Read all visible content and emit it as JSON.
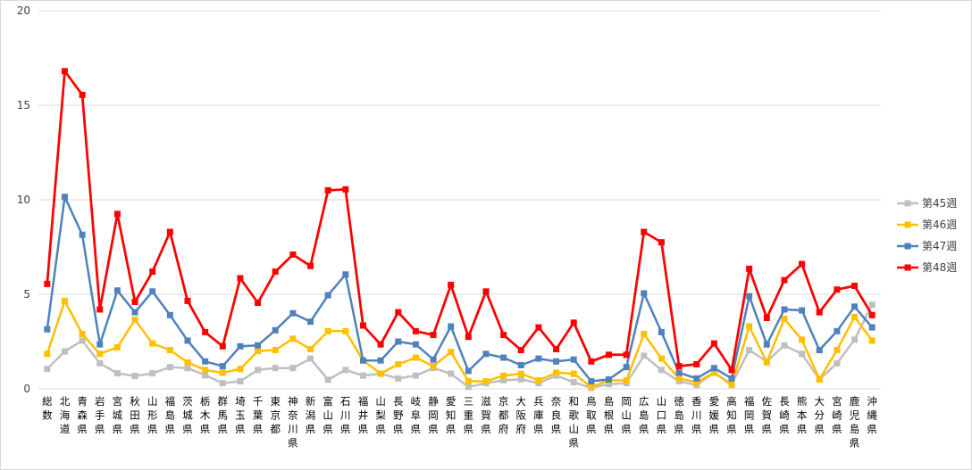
{
  "chart_data": {
    "type": "line",
    "title": "",
    "xlabel": "",
    "ylabel": "",
    "ylim": [
      0,
      20
    ],
    "yticks": [
      "0",
      "5",
      "10",
      "15",
      "20"
    ],
    "grid": "horizontal",
    "legend_position": "right",
    "categories": [
      "総数",
      "北海道",
      "青森県",
      "岩手県",
      "宮城県",
      "秋田県",
      "山形県",
      "福島県",
      "茨城県",
      "栃木県",
      "群馬県",
      "埼玉県",
      "千葉県",
      "東京都",
      "神奈川県",
      "新潟県",
      "富山県",
      "石川県",
      "福井県",
      "山梨県",
      "長野県",
      "岐阜県",
      "静岡県",
      "愛知県",
      "三重県",
      "滋賀県",
      "京都府",
      "大阪府",
      "兵庫県",
      "奈良県",
      "和歌山県",
      "鳥取県",
      "島根県",
      "岡山県",
      "広島県",
      "山口県",
      "徳島県",
      "香川県",
      "愛媛県",
      "高知県",
      "福岡県",
      "佐賀県",
      "長崎県",
      "熊本県",
      "大分県",
      "宮崎県",
      "鹿児島県",
      "沖縄県"
    ],
    "series": [
      {
        "name": "第45週",
        "color": "#bfbfbf",
        "values": [
          1.05,
          1.98,
          2.55,
          1.35,
          0.82,
          0.68,
          0.82,
          1.15,
          1.1,
          0.72,
          0.3,
          0.4,
          1.0,
          1.1,
          1.1,
          1.6,
          0.48,
          1.0,
          0.7,
          0.8,
          0.55,
          0.7,
          1.1,
          0.8,
          0.1,
          0.3,
          0.45,
          0.5,
          0.3,
          0.7,
          0.35,
          0.05,
          0.25,
          0.3,
          1.75,
          1.0,
          0.4,
          0.2,
          0.85,
          0.25,
          2.05,
          1.45,
          2.3,
          1.85,
          0.5,
          1.35,
          2.6,
          4.45
        ]
      },
      {
        "name": "第46週",
        "color": "#ffc000",
        "values": [
          1.85,
          4.65,
          2.9,
          1.85,
          2.2,
          3.65,
          2.4,
          2.05,
          1.4,
          1.0,
          0.85,
          1.05,
          2.0,
          2.05,
          2.65,
          2.1,
          3.05,
          3.05,
          1.5,
          0.8,
          1.3,
          1.65,
          1.2,
          1.95,
          0.4,
          0.4,
          0.7,
          0.8,
          0.45,
          0.85,
          0.8,
          0.1,
          0.45,
          0.45,
          2.9,
          1.6,
          0.55,
          0.35,
          0.85,
          0.2,
          3.3,
          1.4,
          3.7,
          2.6,
          0.5,
          2.05,
          3.8,
          2.55
        ]
      },
      {
        "name": "第47週",
        "color": "#4f81bd",
        "values": [
          3.15,
          10.15,
          8.15,
          2.35,
          5.2,
          4.05,
          5.15,
          3.9,
          2.55,
          1.45,
          1.2,
          2.25,
          2.3,
          3.1,
          4.0,
          3.55,
          4.95,
          6.05,
          1.5,
          1.5,
          2.5,
          2.35,
          1.55,
          3.3,
          0.95,
          1.85,
          1.65,
          1.25,
          1.6,
          1.45,
          1.55,
          0.4,
          0.5,
          1.15,
          5.05,
          3.0,
          0.85,
          0.55,
          1.1,
          0.55,
          4.9,
          2.35,
          4.2,
          4.15,
          2.05,
          3.05,
          4.35,
          3.25
        ]
      },
      {
        "name": "第48週",
        "color": "#ff0000",
        "values": [
          5.55,
          16.8,
          15.55,
          4.2,
          9.25,
          4.6,
          6.2,
          8.3,
          4.65,
          3.0,
          2.25,
          5.85,
          4.55,
          6.2,
          7.1,
          6.5,
          10.5,
          10.55,
          3.35,
          2.35,
          4.05,
          3.05,
          2.85,
          5.5,
          2.75,
          5.15,
          2.85,
          2.05,
          3.25,
          2.1,
          3.5,
          1.45,
          1.8,
          1.8,
          8.3,
          7.75,
          1.2,
          1.3,
          2.4,
          1.0,
          6.35,
          3.75,
          5.75,
          6.6,
          4.05,
          5.25,
          5.45,
          3.9
        ]
      }
    ]
  }
}
